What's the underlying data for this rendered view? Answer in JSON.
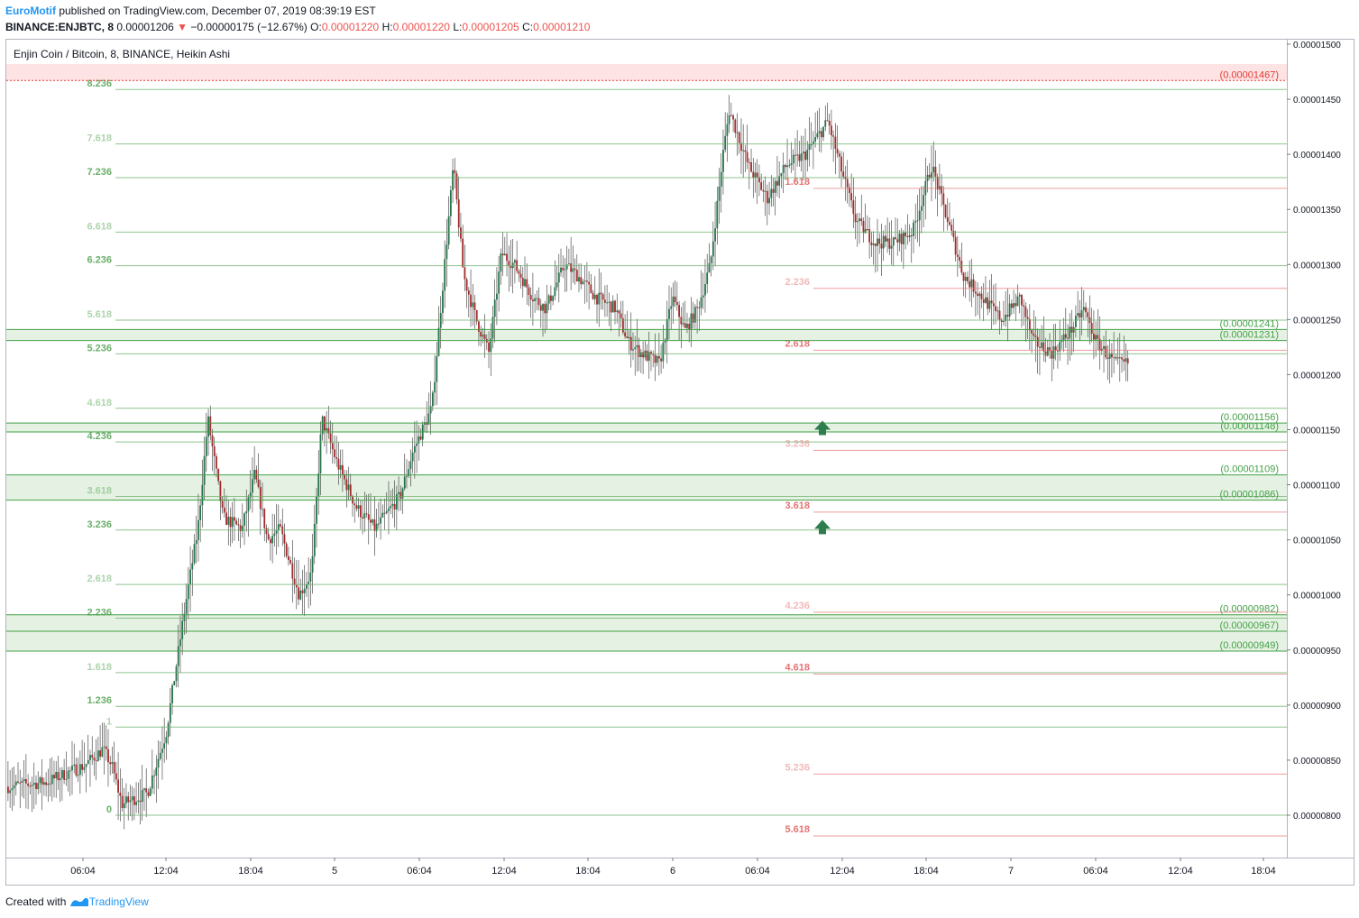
{
  "header": {
    "author": "EuroMotif",
    "published_text": " published on TradingView.com, December 07, 2019 08:39:19 EST",
    "symbol": "BINANCE:ENJBTC, 8",
    "last_price": "0.00001206",
    "change_arrow": "▼",
    "change": "−0.00000175 (−12.67%)",
    "o_label": "O:",
    "o_value": "0.00001220",
    "h_label": "H:",
    "h_value": "0.00001220",
    "l_label": "L:",
    "l_value": "0.00001205",
    "c_label": "C:",
    "c_value": "0.00001210"
  },
  "legend_title": "Enjin Coin / Bitcoin, 8, BINANCE, Heikin Ashi",
  "footer": {
    "created_with": "Created with",
    "brand": "TradingView"
  },
  "colors": {
    "up": "#26734d",
    "down": "#a52a2a",
    "wick": "#333333",
    "fib_green": "#6aaf6a",
    "fib_red": "#e57373",
    "zone_green": "#e5f2e3",
    "zone_red": "#fde3e3"
  },
  "chart_data": {
    "type": "candlestick",
    "style": "Heikin Ashi",
    "ylim": [
      7.8e-06,
      1.5e-05
    ],
    "y_ticks": [
      "0.00001500",
      "0.00001450",
      "0.00001400",
      "0.00001350",
      "0.00001300",
      "0.00001250",
      "0.00001200",
      "0.00001150",
      "0.00001100",
      "0.00001050",
      "0.00001000",
      "0.00000950",
      "0.00000900",
      "0.00000850",
      "0.00000800"
    ],
    "x_ticks": [
      "06:04",
      "12:04",
      "18:04",
      "5",
      "06:04",
      "12:04",
      "18:04",
      "6",
      "06:04",
      "12:04",
      "18:04",
      "7",
      "06:04",
      "12:04",
      "18:04"
    ],
    "left_fib": {
      "base": 8e-06,
      "one": 8.8e-06,
      "levels": [
        {
          "label": "0",
          "ratio": 0
        },
        {
          "label": "1",
          "ratio": 1
        },
        {
          "label": "1.236",
          "ratio": 1.236
        },
        {
          "label": "1.618",
          "ratio": 1.618
        },
        {
          "label": "2.236",
          "ratio": 2.236
        },
        {
          "label": "2.618",
          "ratio": 2.618
        },
        {
          "label": "3.236",
          "ratio": 3.236
        },
        {
          "label": "3.618",
          "ratio": 3.618
        },
        {
          "label": "4.236",
          "ratio": 4.236
        },
        {
          "label": "4.618",
          "ratio": 4.618
        },
        {
          "label": "5.236",
          "ratio": 5.236
        },
        {
          "label": "5.618",
          "ratio": 5.618
        },
        {
          "label": "6.236",
          "ratio": 6.236
        },
        {
          "label": "6.618",
          "ratio": 6.618
        },
        {
          "label": "7.236",
          "ratio": 7.236
        },
        {
          "label": "7.618",
          "ratio": 7.618
        },
        {
          "label": "8.236",
          "ratio": 8.236
        }
      ]
    },
    "right_fib": {
      "base": 1.46e-05,
      "unit": 7e-07,
      "levels": [
        {
          "label": "1.618",
          "ratio": 1.618
        },
        {
          "label": "2.236",
          "ratio": 2.236
        },
        {
          "label": "2.618",
          "ratio": 2.618
        },
        {
          "label": "3.236",
          "ratio": 3.236
        },
        {
          "label": "3.618",
          "ratio": 3.618
        },
        {
          "label": "4.236",
          "ratio": 4.236
        },
        {
          "label": "4.618",
          "ratio": 4.618
        },
        {
          "label": "5.236",
          "ratio": 5.236
        },
        {
          "label": "5.618",
          "ratio": 5.618
        }
      ]
    },
    "horizontal_lines": [
      {
        "label": "(0.00001467)",
        "value": 1.467e-05,
        "color": "red"
      },
      {
        "label": "(0.00001241)",
        "value": 1.241e-05,
        "color": "green"
      },
      {
        "label": "(0.00001231)",
        "value": 1.231e-05,
        "color": "green"
      },
      {
        "label": "(0.00001156)",
        "value": 1.156e-05,
        "color": "green"
      },
      {
        "label": "(0.00001148)",
        "value": 1.148e-05,
        "color": "green"
      },
      {
        "label": "(0.00001109)",
        "value": 1.109e-05,
        "color": "green"
      },
      {
        "label": "(0.00001086)",
        "value": 1.086e-05,
        "color": "green"
      },
      {
        "label": "(0.00000982)",
        "value": 9.82e-06,
        "color": "green"
      },
      {
        "label": "(0.00000967)",
        "value": 9.67e-06,
        "color": "green"
      },
      {
        "label": "(0.00000949)",
        "value": 9.49e-06,
        "color": "green"
      }
    ],
    "zones": [
      {
        "from": 1.467e-05,
        "to": 1.482e-05,
        "color": "red"
      },
      {
        "from": 1.231e-05,
        "to": 1.241e-05,
        "color": "green"
      },
      {
        "from": 1.148e-05,
        "to": 1.156e-05,
        "color": "green"
      },
      {
        "from": 1.086e-05,
        "to": 1.109e-05,
        "color": "green"
      },
      {
        "from": 9.49e-06,
        "to": 9.82e-06,
        "color": "green"
      }
    ],
    "arrows": [
      {
        "type": "up",
        "value": 1.15e-05
      },
      {
        "type": "up",
        "value": 1.06e-05
      }
    ],
    "path_anchors": [
      {
        "t": 0,
        "v": 8.26e-06
      },
      {
        "t": 0.03,
        "v": 8.3e-06
      },
      {
        "t": 0.06,
        "v": 8.45e-06
      },
      {
        "t": 0.075,
        "v": 8.6e-06
      },
      {
        "t": 0.082,
        "v": 8.45e-06
      },
      {
        "t": 0.09,
        "v": 8.1e-06
      },
      {
        "t": 0.11,
        "v": 8.2e-06
      },
      {
        "t": 0.125,
        "v": 8.75e-06
      },
      {
        "t": 0.14,
        "v": 9.9e-06
      },
      {
        "t": 0.15,
        "v": 1.06e-05
      },
      {
        "t": 0.158,
        "v": 1.16e-05
      },
      {
        "t": 0.17,
        "v": 1.07e-05
      },
      {
        "t": 0.185,
        "v": 1.06e-05
      },
      {
        "t": 0.195,
        "v": 1.11e-05
      },
      {
        "t": 0.205,
        "v": 1.05e-05
      },
      {
        "t": 0.215,
        "v": 1.06e-05
      },
      {
        "t": 0.23,
        "v": 1e-05
      },
      {
        "t": 0.24,
        "v": 1.02e-05
      },
      {
        "t": 0.248,
        "v": 1.16e-05
      },
      {
        "t": 0.26,
        "v": 1.12e-05
      },
      {
        "t": 0.275,
        "v": 1.08e-05
      },
      {
        "t": 0.29,
        "v": 1.06e-05
      },
      {
        "t": 0.31,
        "v": 1.09e-05
      },
      {
        "t": 0.32,
        "v": 1.13e-05
      },
      {
        "t": 0.335,
        "v": 1.17e-05
      },
      {
        "t": 0.345,
        "v": 1.3e-05
      },
      {
        "t": 0.352,
        "v": 1.39e-05
      },
      {
        "t": 0.36,
        "v": 1.29e-05
      },
      {
        "t": 0.37,
        "v": 1.25e-05
      },
      {
        "t": 0.38,
        "v": 1.22e-05
      },
      {
        "t": 0.39,
        "v": 1.31e-05
      },
      {
        "t": 0.4,
        "v": 1.3e-05
      },
      {
        "t": 0.415,
        "v": 1.27e-05
      },
      {
        "t": 0.425,
        "v": 1.26e-05
      },
      {
        "t": 0.44,
        "v": 1.3e-05
      },
      {
        "t": 0.45,
        "v": 1.29e-05
      },
      {
        "t": 0.465,
        "v": 1.27e-05
      },
      {
        "t": 0.48,
        "v": 1.26e-05
      },
      {
        "t": 0.49,
        "v": 1.23e-05
      },
      {
        "t": 0.5,
        "v": 1.22e-05
      },
      {
        "t": 0.515,
        "v": 1.21e-05
      },
      {
        "t": 0.525,
        "v": 1.27e-05
      },
      {
        "t": 0.535,
        "v": 1.24e-05
      },
      {
        "t": 0.545,
        "v": 1.26e-05
      },
      {
        "t": 0.555,
        "v": 1.3e-05
      },
      {
        "t": 0.565,
        "v": 1.4e-05
      },
      {
        "t": 0.57,
        "v": 1.44e-05
      },
      {
        "t": 0.585,
        "v": 1.39e-05
      },
      {
        "t": 0.6,
        "v": 1.36e-05
      },
      {
        "t": 0.615,
        "v": 1.39e-05
      },
      {
        "t": 0.63,
        "v": 1.4e-05
      },
      {
        "t": 0.648,
        "v": 1.43e-05
      },
      {
        "t": 0.66,
        "v": 1.38e-05
      },
      {
        "t": 0.67,
        "v": 1.34e-05
      },
      {
        "t": 0.685,
        "v": 1.32e-05
      },
      {
        "t": 0.7,
        "v": 1.32e-05
      },
      {
        "t": 0.715,
        "v": 1.33e-05
      },
      {
        "t": 0.73,
        "v": 1.39e-05
      },
      {
        "t": 0.745,
        "v": 1.33e-05
      },
      {
        "t": 0.755,
        "v": 1.29e-05
      },
      {
        "t": 0.77,
        "v": 1.27e-05
      },
      {
        "t": 0.785,
        "v": 1.25e-05
      },
      {
        "t": 0.8,
        "v": 1.27e-05
      },
      {
        "t": 0.81,
        "v": 1.23e-05
      },
      {
        "t": 0.825,
        "v": 1.22e-05
      },
      {
        "t": 0.84,
        "v": 1.24e-05
      },
      {
        "t": 0.85,
        "v": 1.26e-05
      },
      {
        "t": 0.86,
        "v": 1.23e-05
      },
      {
        "t": 0.875,
        "v": 1.21e-05
      },
      {
        "t": 0.885,
        "v": 1.21e-05
      }
    ]
  }
}
